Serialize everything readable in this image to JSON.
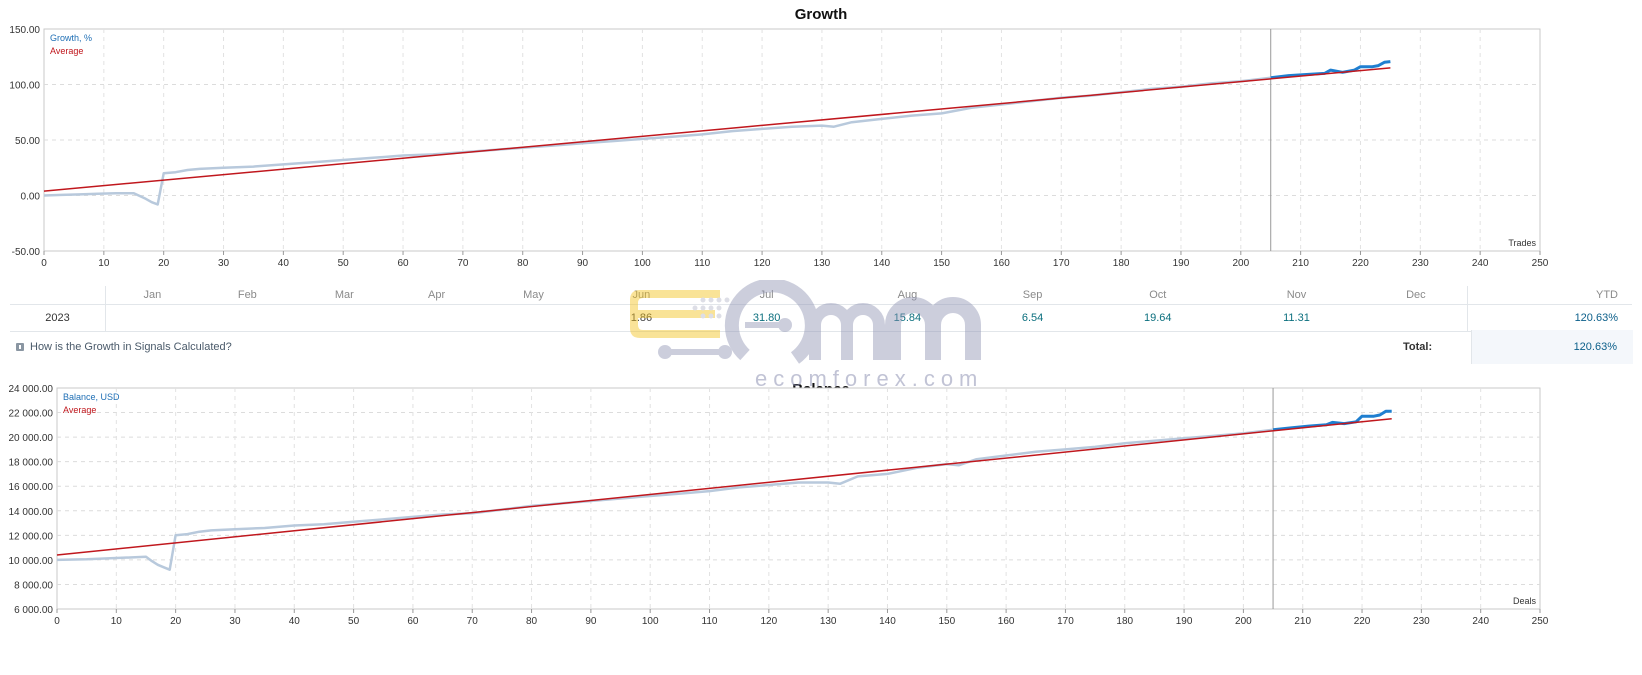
{
  "chart_data": [
    {
      "type": "line",
      "title": "Growth",
      "xlabel": "Trades",
      "ylim": [
        -50,
        150
      ],
      "xlim": [
        0,
        250
      ],
      "yticks": [
        "-50.00",
        "0.00",
        "50.00",
        "100.00",
        "150.00"
      ],
      "xticks": [
        0,
        10,
        20,
        30,
        40,
        50,
        60,
        70,
        80,
        90,
        100,
        110,
        120,
        130,
        140,
        150,
        160,
        170,
        180,
        190,
        200,
        210,
        220,
        230,
        240,
        250
      ],
      "legend": [
        {
          "name": "Growth, %",
          "color": "#1f6fb5"
        },
        {
          "name": "Average",
          "color": "#c0171d"
        }
      ],
      "legend_position": "top-left",
      "grid": true,
      "split_x": 205,
      "series": [
        {
          "name": "Growth, %",
          "x": [
            0,
            3,
            6,
            9,
            12,
            15,
            17,
            18,
            19,
            20,
            22,
            24,
            26,
            30,
            35,
            40,
            45,
            50,
            55,
            60,
            65,
            70,
            75,
            80,
            85,
            90,
            95,
            100,
            105,
            110,
            115,
            120,
            125,
            130,
            132,
            135,
            140,
            145,
            150,
            152,
            155,
            160,
            165,
            170,
            175,
            180,
            185,
            190,
            195,
            200,
            205
          ],
          "values": [
            0,
            0.5,
            1,
            1.5,
            2,
            2,
            -3,
            -6,
            -8,
            20,
            21,
            23,
            24,
            25,
            26,
            28,
            30,
            32,
            34,
            36,
            37,
            39,
            41,
            43,
            45,
            47,
            49,
            51,
            53,
            55,
            58,
            60,
            62,
            63,
            62,
            66,
            69,
            72,
            74,
            76,
            79,
            82,
            85,
            88,
            90,
            93,
            96,
            98,
            101,
            103,
            106
          ]
        },
        {
          "name": "Growth, % (recent)",
          "x": [
            205,
            208,
            211,
            214,
            215,
            217,
            219,
            220,
            222,
            223,
            224,
            225
          ],
          "values": [
            106,
            108,
            109,
            110,
            113,
            111,
            113,
            116,
            116,
            117,
            120,
            120.63
          ]
        },
        {
          "name": "Average",
          "x": [
            0,
            225
          ],
          "values": [
            4,
            115
          ]
        }
      ]
    },
    {
      "type": "line",
      "title": "Balance",
      "xlabel": "Deals",
      "ylim": [
        6000,
        24000
      ],
      "xlim": [
        0,
        250
      ],
      "yticks": [
        "6 000.00",
        "8 000.00",
        "10 000.00",
        "12 000.00",
        "14 000.00",
        "16 000.00",
        "18 000.00",
        "20 000.00",
        "22 000.00",
        "24 000.00"
      ],
      "xticks": [
        0,
        10,
        20,
        30,
        40,
        50,
        60,
        70,
        80,
        90,
        100,
        110,
        120,
        130,
        140,
        150,
        160,
        170,
        180,
        190,
        200,
        210,
        220,
        230,
        240,
        250
      ],
      "legend": [
        {
          "name": "Balance, USD",
          "color": "#1f6fb5"
        },
        {
          "name": "Average",
          "color": "#c0171d"
        }
      ],
      "legend_position": "top-left",
      "grid": true,
      "split_x": 205,
      "series": [
        {
          "name": "Balance, USD",
          "x": [
            0,
            5,
            10,
            15,
            16,
            17,
            18,
            19,
            20,
            22,
            24,
            26,
            30,
            35,
            40,
            45,
            50,
            55,
            60,
            65,
            70,
            75,
            80,
            85,
            90,
            95,
            100,
            105,
            110,
            115,
            120,
            125,
            130,
            132,
            135,
            140,
            145,
            150,
            152,
            155,
            160,
            165,
            170,
            175,
            180,
            185,
            190,
            195,
            200,
            205
          ],
          "values": [
            10000,
            10050,
            10150,
            10250,
            9900,
            9600,
            9400,
            9200,
            12000,
            12100,
            12300,
            12400,
            12500,
            12600,
            12800,
            12900,
            13100,
            13300,
            13500,
            13700,
            13800,
            14100,
            14400,
            14600,
            14800,
            15000,
            15200,
            15400,
            15600,
            15900,
            16100,
            16300,
            16300,
            16200,
            16800,
            17000,
            17500,
            17800,
            17700,
            18200,
            18500,
            18800,
            19000,
            19200,
            19500,
            19700,
            19900,
            20100,
            20300,
            20600
          ]
        },
        {
          "name": "Balance, USD (recent)",
          "x": [
            205,
            208,
            211,
            214,
            215,
            217,
            219,
            220,
            222,
            223,
            224,
            225
          ],
          "values": [
            20600,
            20750,
            20900,
            21000,
            21200,
            21100,
            21250,
            21700,
            21700,
            21800,
            22100,
            22100
          ]
        },
        {
          "name": "Average",
          "x": [
            0,
            225
          ],
          "values": [
            10400,
            21500
          ]
        }
      ]
    }
  ],
  "monthly_table": {
    "year": "2023",
    "months": [
      "Jan",
      "Feb",
      "Mar",
      "Apr",
      "May",
      "Jun",
      "Jul",
      "Aug",
      "Sep",
      "Oct",
      "Nov",
      "Dec"
    ],
    "values": [
      "",
      "",
      "",
      "",
      "",
      "1.86",
      "31.80",
      "15.84",
      "6.54",
      "19.64",
      "11.31",
      ""
    ],
    "ytd_label": "YTD",
    "ytd_value": "120.63%"
  },
  "growth_info_link": "How is the Growth in Signals Calculated?",
  "total": {
    "label": "Total:",
    "value": "120.63%"
  },
  "watermark": {
    "text": "ecomforex.com",
    "letters": "ECM"
  }
}
